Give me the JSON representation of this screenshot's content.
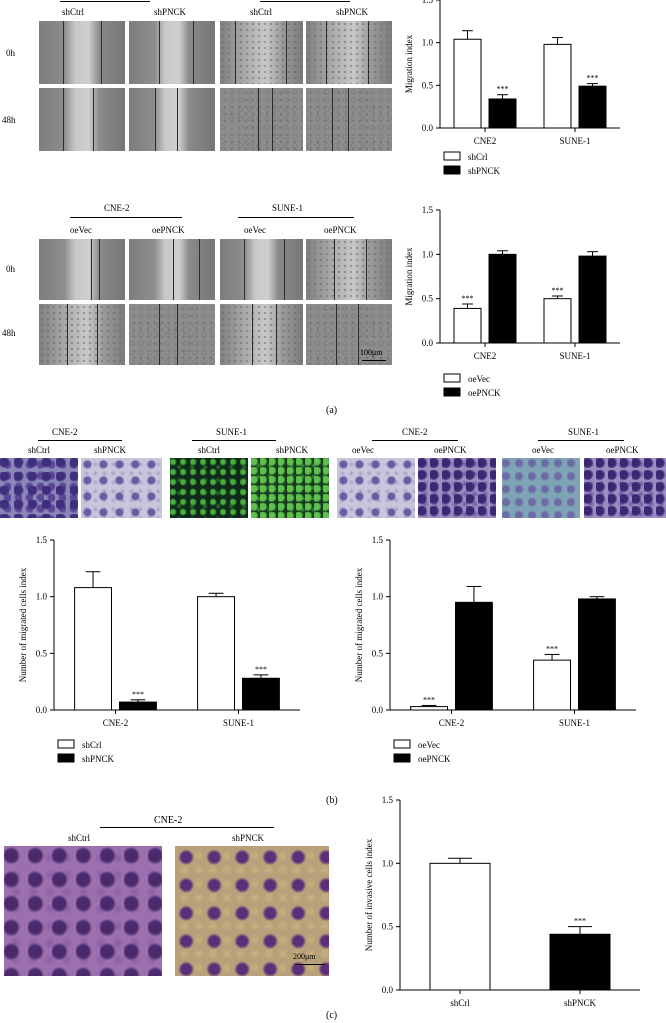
{
  "panel_a": {
    "top": {
      "group_labels": [
        "shCtrl",
        "shPNCK",
        "shCtrl",
        "shPNCK"
      ],
      "time_labels": [
        "0h",
        "48h"
      ]
    },
    "bottom": {
      "cell_labels": [
        "CNE-2",
        "SUNE-1"
      ],
      "group_labels": [
        "oeVec",
        "oePNCK",
        "oeVec",
        "oePNCK"
      ],
      "time_labels": [
        "0h",
        "48h"
      ],
      "scale_bar": "100μm"
    },
    "tag": "(a)"
  },
  "panel_b": {
    "headers": [
      "CNE-2",
      "SUNE-1",
      "CNE-2",
      "SUNE-1"
    ],
    "group_labels": [
      "shCtrl",
      "shPNCK",
      "shCtrl",
      "shPNCK",
      "oeVec",
      "oePNCK",
      "oeVec",
      "oePNCK"
    ],
    "tag": "(b)"
  },
  "panel_c": {
    "header": "CNE-2",
    "group_labels": [
      "shCtrl",
      "shPNCK"
    ],
    "scale_bar": "200μm",
    "tag": "(c)"
  },
  "chart_data": [
    {
      "id": "chartA1",
      "type": "bar",
      "categories": [
        "CNE2",
        "SUNE-1"
      ],
      "series": [
        {
          "name": "shCrl",
          "values": [
            1.04,
            0.98
          ],
          "errors": [
            0.1,
            0.08
          ],
          "fill": "#ffffff"
        },
        {
          "name": "shPNCK",
          "values": [
            0.34,
            0.49
          ],
          "errors": [
            0.05,
            0.03
          ],
          "fill": "#000000"
        }
      ],
      "annotations": [
        {
          "series": 1,
          "category": 0,
          "text": "***"
        },
        {
          "series": 1,
          "category": 1,
          "text": "***"
        }
      ],
      "ylabel": "Migration index",
      "ylim": [
        0,
        1.5
      ],
      "yticks": [
        "0.0",
        "0.5",
        "1.0",
        "1.5"
      ],
      "legend": [
        "shCrl",
        "shPNCK"
      ]
    },
    {
      "id": "chartA2",
      "type": "bar",
      "categories": [
        "CNE2",
        "SUNE-1"
      ],
      "series": [
        {
          "name": "oeVec",
          "values": [
            0.39,
            0.5
          ],
          "errors": [
            0.05,
            0.03
          ],
          "fill": "#ffffff"
        },
        {
          "name": "oePNCK",
          "values": [
            1.0,
            0.98
          ],
          "errors": [
            0.04,
            0.05
          ],
          "fill": "#000000"
        }
      ],
      "annotations": [
        {
          "series": 0,
          "category": 0,
          "text": "***"
        },
        {
          "series": 0,
          "category": 1,
          "text": "***"
        }
      ],
      "ylabel": "Migration index",
      "ylim": [
        0,
        1.5
      ],
      "yticks": [
        "0.0",
        "0.5",
        "1.0",
        "1.5"
      ],
      "legend": [
        "oeVec",
        "oePNCK"
      ]
    },
    {
      "id": "chartB1",
      "type": "bar",
      "categories": [
        "CNE-2",
        "SUNE-1"
      ],
      "series": [
        {
          "name": "shCrl",
          "values": [
            1.08,
            1.0
          ],
          "errors": [
            0.14,
            0.03
          ],
          "fill": "#ffffff"
        },
        {
          "name": "shPNCK",
          "values": [
            0.07,
            0.28
          ],
          "errors": [
            0.02,
            0.03
          ],
          "fill": "#000000"
        }
      ],
      "annotations": [
        {
          "series": 1,
          "category": 0,
          "text": "***"
        },
        {
          "series": 1,
          "category": 1,
          "text": "***"
        }
      ],
      "ylabel": "Number of migrated cells index",
      "ylim": [
        0,
        1.5
      ],
      "yticks": [
        "0.0",
        "0.5",
        "1.0",
        "1.5"
      ],
      "legend": [
        "shCrl",
        "shPNCK"
      ]
    },
    {
      "id": "chartB2",
      "type": "bar",
      "categories": [
        "CNE-2",
        "SUNE-1"
      ],
      "series": [
        {
          "name": "oeVec",
          "values": [
            0.03,
            0.44
          ],
          "errors": [
            0.01,
            0.05
          ],
          "fill": "#ffffff"
        },
        {
          "name": "oePNCK",
          "values": [
            0.95,
            0.98
          ],
          "errors": [
            0.14,
            0.02
          ],
          "fill": "#000000"
        }
      ],
      "annotations": [
        {
          "series": 0,
          "category": 0,
          "text": "***"
        },
        {
          "series": 0,
          "category": 1,
          "text": "***"
        }
      ],
      "ylabel": "Number of migrated cells index",
      "ylim": [
        0,
        1.5
      ],
      "yticks": [
        "0.0",
        "0.5",
        "1.0",
        "1.5"
      ],
      "legend": [
        "oeVec",
        "oePNCK"
      ]
    },
    {
      "id": "chartC",
      "type": "bar",
      "categories": [
        "shCrl",
        "shPNCK"
      ],
      "series": [
        {
          "name": "",
          "values": [
            1.0,
            0.44
          ],
          "errors": [
            0.04,
            0.06
          ],
          "fills": [
            "#ffffff",
            "#000000"
          ]
        }
      ],
      "annotations": [
        {
          "series": 0,
          "category": 1,
          "text": "***"
        }
      ],
      "ylabel": "Number of invasive cells index",
      "ylim": [
        0,
        1.5
      ],
      "yticks": [
        "0.0",
        "0.5",
        "1.0",
        "1.5"
      ],
      "legend": []
    }
  ]
}
